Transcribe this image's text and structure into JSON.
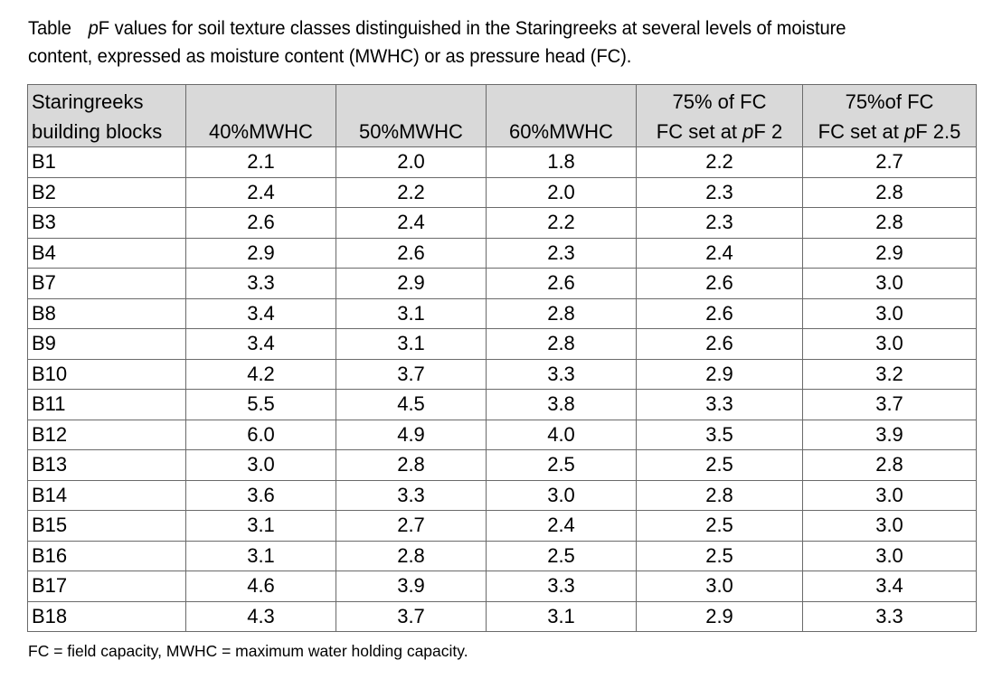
{
  "caption": {
    "label": "Table",
    "italic_start": "p",
    "line1_rest": "F values for soil texture classes distinguished in the Staringreeks at several levels of moisture",
    "line2": "content, expressed as moisture content (MWHC) or as pressure head (FC)."
  },
  "table": {
    "header": {
      "col0_line1": "Staringreeks",
      "col0_line2": "building blocks",
      "col1": "40%MWHC",
      "col2": "50%MWHC",
      "col3": "60%MWHC",
      "col4_line1": "75% of FC",
      "col4_line2_prefix": "FC set at ",
      "col4_line2_italic": "p",
      "col4_line2_suffix": "F 2",
      "col5_line1": "75%of FC",
      "col5_line2_prefix": "FC set at ",
      "col5_line2_italic": "p",
      "col5_line2_suffix": "F 2.5"
    },
    "rows": [
      [
        "B1",
        "2.1",
        "2.0",
        "1.8",
        "2.2",
        "2.7"
      ],
      [
        "B2",
        "2.4",
        "2.2",
        "2.0",
        "2.3",
        "2.8"
      ],
      [
        "B3",
        "2.6",
        "2.4",
        "2.2",
        "2.3",
        "2.8"
      ],
      [
        "B4",
        "2.9",
        "2.6",
        "2.3",
        "2.4",
        "2.9"
      ],
      [
        "B7",
        "3.3",
        "2.9",
        "2.6",
        "2.6",
        "3.0"
      ],
      [
        "B8",
        "3.4",
        "3.1",
        "2.8",
        "2.6",
        "3.0"
      ],
      [
        "B9",
        "3.4",
        "3.1",
        "2.8",
        "2.6",
        "3.0"
      ],
      [
        "B10",
        "4.2",
        "3.7",
        "3.3",
        "2.9",
        "3.2"
      ],
      [
        "B11",
        "5.5",
        "4.5",
        "3.8",
        "3.3",
        "3.7"
      ],
      [
        "B12",
        "6.0",
        "4.9",
        "4.0",
        "3.5",
        "3.9"
      ],
      [
        "B13",
        "3.0",
        "2.8",
        "2.5",
        "2.5",
        "2.8"
      ],
      [
        "B14",
        "3.6",
        "3.3",
        "3.0",
        "2.8",
        "3.0"
      ],
      [
        "B15",
        "3.1",
        "2.7",
        "2.4",
        "2.5",
        "3.0"
      ],
      [
        "B16",
        "3.1",
        "2.8",
        "2.5",
        "2.5",
        "3.0"
      ],
      [
        "B17",
        "4.6",
        "3.9",
        "3.3",
        "3.0",
        "3.4"
      ],
      [
        "B18",
        "4.3",
        "3.7",
        "3.1",
        "2.9",
        "3.3"
      ]
    ]
  },
  "footnote": "FC = field capacity, MWHC = maximum water holding capacity."
}
